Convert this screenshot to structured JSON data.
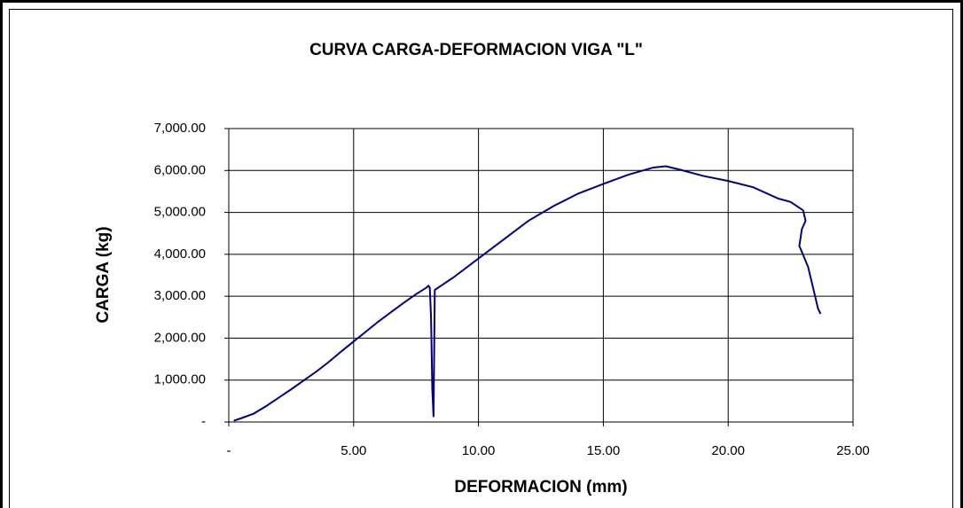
{
  "chart_data": {
    "type": "line",
    "title": "CURVA CARGA-DEFORMACION VIGA \"L\"",
    "xlabel": "DEFORMACION (mm)",
    "ylabel": "CARGA (kg)",
    "x": [
      0.2,
      0.5,
      1,
      1.5,
      2,
      2.5,
      3,
      3.5,
      4,
      4.5,
      5,
      5.5,
      6,
      6.5,
      7,
      7.5,
      7.9,
      8.0,
      8.05,
      8.1,
      8.15,
      8.2,
      8.25,
      9,
      10,
      11,
      12,
      13,
      14,
      15,
      16,
      17,
      17.5,
      18,
      19,
      20,
      21,
      22,
      22.5,
      23,
      23.1,
      22.95,
      22.85,
      23.2,
      23.6,
      23.7
    ],
    "series": [
      {
        "name": "CARGA",
        "color": "#000080",
        "values": [
          30,
          90,
          200,
          380,
          580,
          780,
          990,
          1200,
          1430,
          1680,
          1920,
          2160,
          2400,
          2620,
          2840,
          3050,
          3200,
          3250,
          3200,
          2500,
          800,
          120,
          3150,
          3450,
          3900,
          4350,
          4800,
          5150,
          5450,
          5680,
          5900,
          6070,
          6100,
          6030,
          5870,
          5750,
          5600,
          5330,
          5250,
          5050,
          4800,
          4600,
          4200,
          3700,
          2700,
          2580
        ]
      }
    ],
    "xlim": [
      0,
      25
    ],
    "xticks": [
      {
        "value": 0,
        "label": "-"
      },
      {
        "value": 5,
        "label": "5.00"
      },
      {
        "value": 10,
        "label": "10.00"
      },
      {
        "value": 15,
        "label": "15.00"
      },
      {
        "value": 20,
        "label": "20.00"
      },
      {
        "value": 25,
        "label": "25.00"
      }
    ],
    "ylim": [
      0,
      7000
    ],
    "yticks": [
      {
        "value": 0,
        "label": "-"
      },
      {
        "value": 1000,
        "label": "1,000.00"
      },
      {
        "value": 2000,
        "label": "2,000.00"
      },
      {
        "value": 3000,
        "label": "3,000.00"
      },
      {
        "value": 4000,
        "label": "4,000.00"
      },
      {
        "value": 5000,
        "label": "5,000.00"
      },
      {
        "value": 6000,
        "label": "6,000.00"
      },
      {
        "value": 7000,
        "label": "7,000.00"
      }
    ],
    "grid": true
  }
}
